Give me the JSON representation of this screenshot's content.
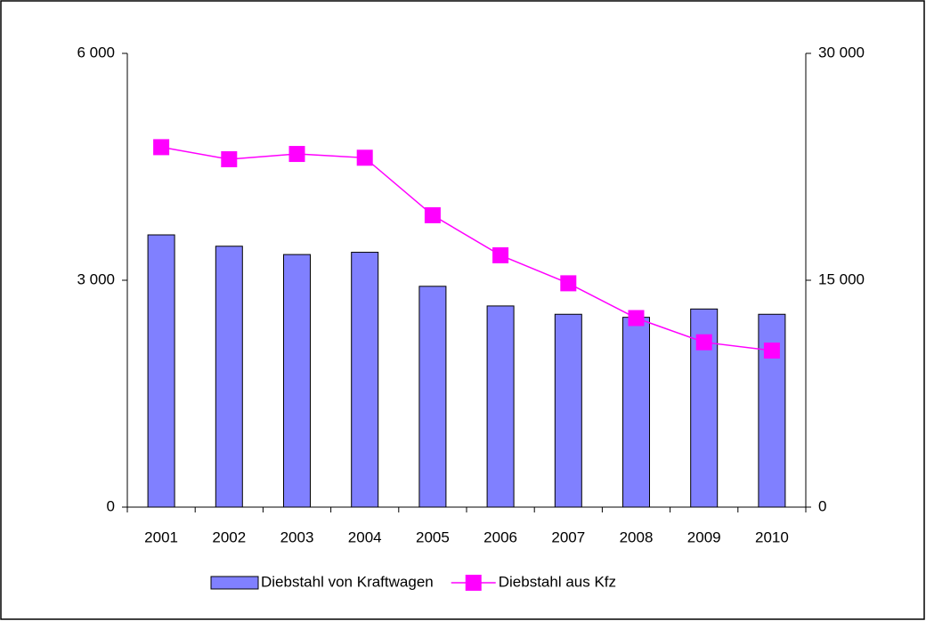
{
  "chart_data": {
    "type": "bar-line",
    "categories": [
      "2001",
      "2002",
      "2003",
      "2004",
      "2005",
      "2006",
      "2007",
      "2008",
      "2009",
      "2010"
    ],
    "series": [
      {
        "name": "Diebstahl von Kraftwagen",
        "type": "bar",
        "color": "#8080ff",
        "values": [
          3600,
          3450,
          3340,
          3370,
          2920,
          2660,
          2550,
          2510,
          2620,
          2550
        ]
      },
      {
        "name": "Diebstahl aus Kfz",
        "type": "line",
        "axis": "y2",
        "color": "#ff00ff",
        "values": [
          23800,
          23000,
          23350,
          23100,
          19300,
          16650,
          14800,
          12500,
          10900,
          10350
        ]
      }
    ],
    "ylim": [
      0,
      6000
    ],
    "yticks": [
      0,
      {
        "value": 3000,
        "label": "3 000"
      },
      {
        "value": 6000,
        "label": "6 000"
      }
    ],
    "y2lim": [
      0,
      30000
    ],
    "y2ticks": [
      0,
      {
        "value": 15000,
        "label": "15 000"
      },
      {
        "value": 30000,
        "label": "30 000"
      }
    ],
    "grid": false,
    "legend": "bottom"
  }
}
